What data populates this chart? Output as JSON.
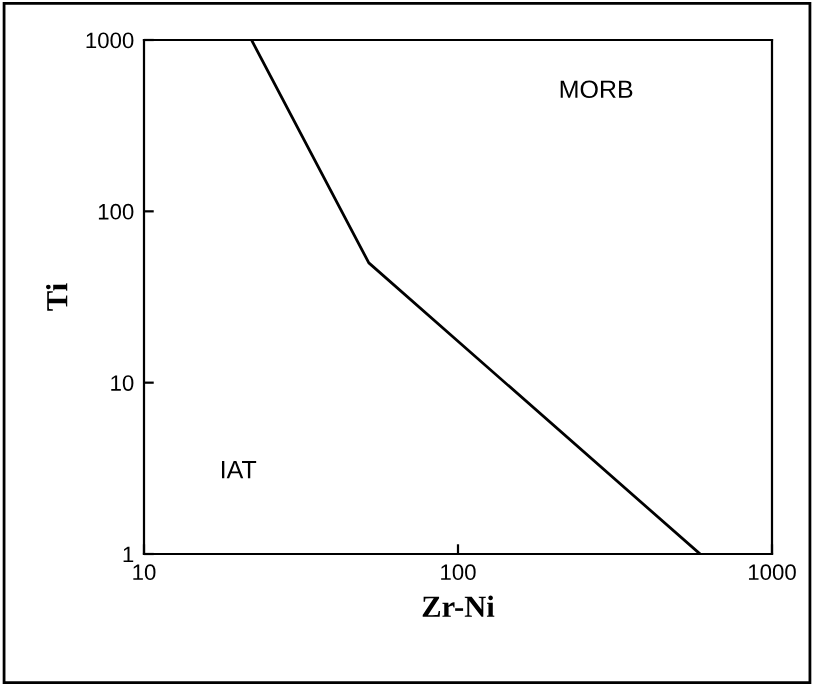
{
  "chart_data": {
    "type": "line",
    "xlabel": "Zr-Ni",
    "ylabel": "Ti",
    "x": [
      22,
      52,
      590
    ],
    "series": [
      {
        "color": "#000000",
        "values": [
          1000,
          50,
          1
        ]
      }
    ],
    "log": "xy",
    "xlim": [
      10,
      1000
    ],
    "ylim": [
      1,
      1000
    ],
    "xticks": [
      10,
      100,
      1000
    ],
    "yticks": [
      1,
      10,
      100,
      1000
    ],
    "grid": false,
    "legend": false,
    "marker": "none",
    "line_style": "solid",
    "annotations": [
      "MORB",
      "IAT"
    ]
  }
}
